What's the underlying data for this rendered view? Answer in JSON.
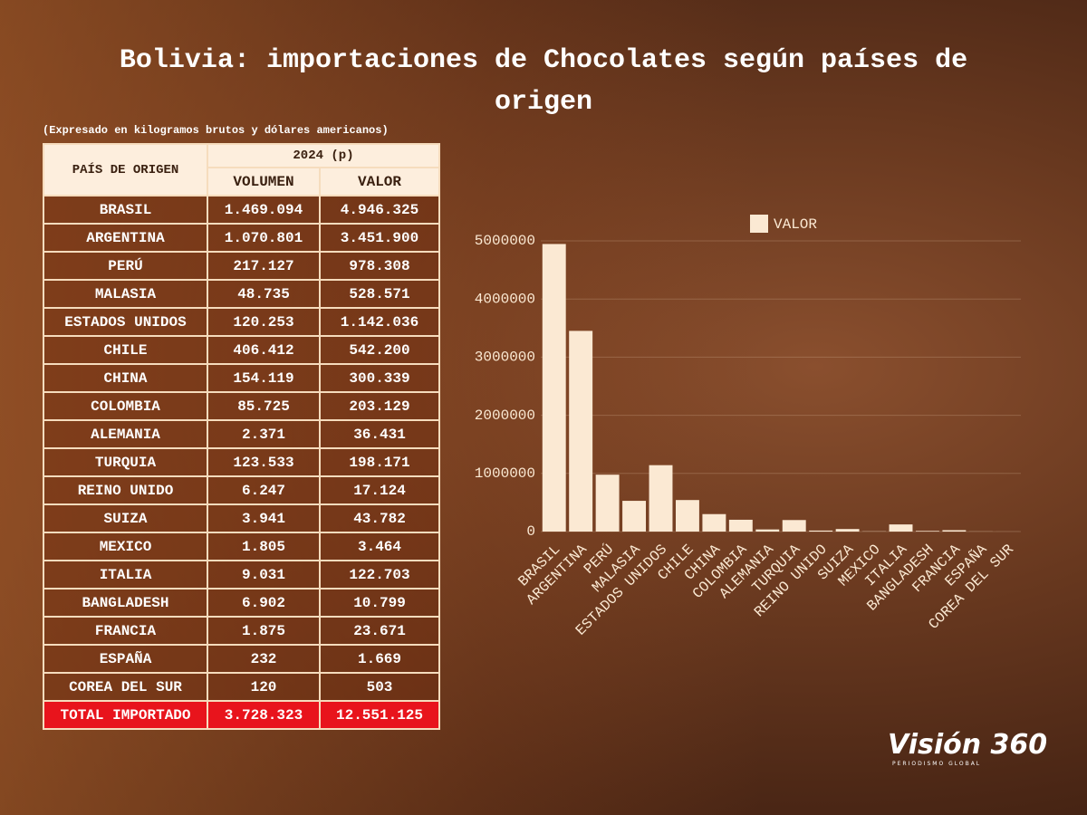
{
  "title": "Bolivia: importaciones de Chocolates según países de origen",
  "note": "(Expresado en kilogramos brutos y dólares americanos)",
  "table": {
    "header": {
      "country": "PAÍS DE ORIGEN",
      "period": "2024 (p)",
      "columns": [
        "VOLUMEN",
        "VALOR"
      ]
    },
    "rows": [
      [
        "BRASIL",
        "1.469.094",
        "4.946.325"
      ],
      [
        "ARGENTINA",
        "1.070.801",
        "3.451.900"
      ],
      [
        "PERÚ",
        "217.127",
        "978.308"
      ],
      [
        "MALASIA",
        "48.735",
        "528.571"
      ],
      [
        "ESTADOS UNIDOS",
        "120.253",
        "1.142.036"
      ],
      [
        "CHILE",
        "406.412",
        "542.200"
      ],
      [
        "CHINA",
        "154.119",
        "300.339"
      ],
      [
        "COLOMBIA",
        "85.725",
        "203.129"
      ],
      [
        "ALEMANIA",
        "2.371",
        "36.431"
      ],
      [
        "TURQUIA",
        "123.533",
        "198.171"
      ],
      [
        "REINO UNIDO",
        "6.247",
        "17.124"
      ],
      [
        "SUIZA",
        "3.941",
        "43.782"
      ],
      [
        "MEXICO",
        "1.805",
        "3.464"
      ],
      [
        "ITALIA",
        "9.031",
        "122.703"
      ],
      [
        "BANGLADESH",
        "6.902",
        "10.799"
      ],
      [
        "FRANCIA",
        "1.875",
        "23.671"
      ],
      [
        "ESPAÑA",
        "232",
        "1.669"
      ],
      [
        "COREA DEL SUR",
        "120",
        "503"
      ]
    ],
    "total": [
      "TOTAL IMPORTADO",
      "3.728.323",
      "12.551.125"
    ]
  },
  "chart_data": {
    "type": "bar",
    "categories": [
      "BRASIL",
      "ARGENTINA",
      "PERÚ",
      "MALASIA",
      "ESTADOS UNIDOS",
      "CHILE",
      "CHINA",
      "COLOMBIA",
      "ALEMANIA",
      "TURQUIA",
      "REINO UNIDO",
      "SUIZA",
      "MEXICO",
      "ITALIA",
      "BANGLADESH",
      "FRANCIA",
      "ESPAÑA",
      "COREA DEL SUR"
    ],
    "series": [
      {
        "name": "VALOR",
        "color": "#fbe9d3",
        "values": [
          4946325,
          3451900,
          978308,
          528571,
          1142036,
          542200,
          300339,
          203129,
          36431,
          198171,
          17124,
          43782,
          3464,
          122703,
          10799,
          23671,
          1669,
          503
        ]
      }
    ],
    "ylim": [
      0,
      5000000
    ],
    "yticks": [
      0,
      1000000,
      2000000,
      3000000,
      4000000,
      5000000
    ],
    "grid": true,
    "legend": "top"
  },
  "brand": {
    "name": "Visión 360",
    "tagline": "PERIODISMO GLOBAL"
  }
}
